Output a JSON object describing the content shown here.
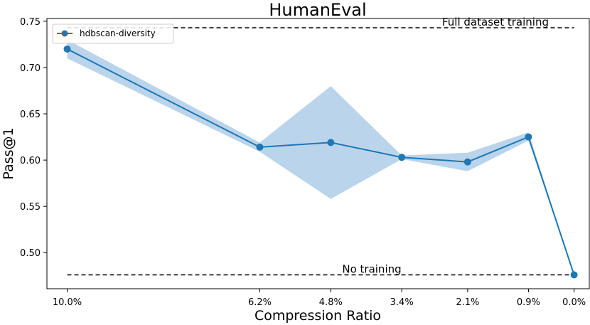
{
  "chart_data": {
    "type": "line",
    "title": "HumanEval",
    "xlabel": "Compression Ratio",
    "ylabel": "Pass@1",
    "categories": [
      "10.0%",
      "6.2%",
      "4.8%",
      "3.4%",
      "2.1%",
      "0.9%",
      "0.0%"
    ],
    "category_positions": [
      10.0,
      6.2,
      4.8,
      3.4,
      2.1,
      0.9,
      0.0
    ],
    "xlim": [
      10.4,
      -0.3
    ],
    "ylim": [
      0.461,
      0.753
    ],
    "yticks": [
      0.5,
      0.55,
      0.6,
      0.65,
      0.7,
      0.75
    ],
    "ytick_labels": [
      "0.50",
      "0.55",
      "0.60",
      "0.65",
      "0.70",
      "0.75"
    ],
    "grid": false,
    "legend_position": "top-left",
    "series": [
      {
        "name": "hdbscan-diversity",
        "color": "#1f77b4",
        "band_color": "#a9cbe6",
        "values": [
          0.72,
          0.614,
          0.619,
          0.603,
          0.598,
          0.625,
          0.476
        ],
        "lower": [
          0.71,
          0.609,
          0.558,
          0.601,
          0.588,
          0.621,
          0.476
        ],
        "upper": [
          0.73,
          0.619,
          0.68,
          0.605,
          0.608,
          0.63,
          0.476
        ]
      }
    ],
    "reference_lines": [
      {
        "label": "Full dataset training",
        "value": 0.743
      },
      {
        "label": "No training",
        "value": 0.476
      }
    ]
  }
}
